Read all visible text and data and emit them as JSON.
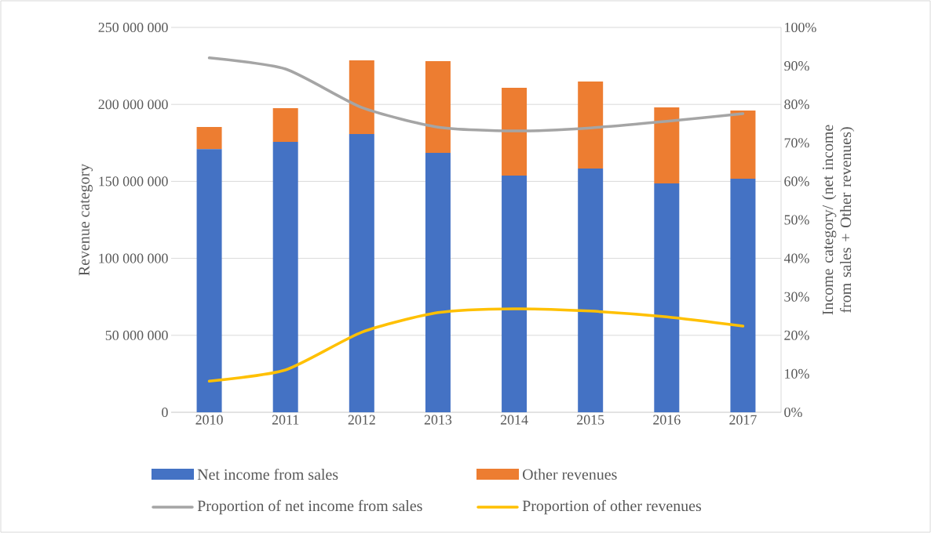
{
  "chart_data": {
    "type": "bar",
    "stacked": true,
    "grid": "y",
    "legend": "bottom",
    "categories": [
      "2010",
      "2011",
      "2012",
      "2013",
      "2014",
      "2015",
      "2016",
      "2017"
    ],
    "ylabel": "Revenue category",
    "y2label": "Income category/ (net income from sales + Other revenues)",
    "ylim": [
      0,
      250000000
    ],
    "yticks": [
      0,
      {
        "value": 50000000,
        "label": "50 000 000"
      },
      {
        "value": 100000000,
        "label": "100 000 000"
      },
      {
        "value": 150000000,
        "label": "150 000 000"
      },
      {
        "value": 200000000,
        "label": "200 000 000"
      },
      {
        "value": 250000000,
        "label": "250 000 000"
      }
    ],
    "y2lim": [
      0,
      100
    ],
    "y2ticks": [
      {
        "value": 0,
        "label": "0%"
      },
      {
        "value": 10,
        "label": "10%"
      },
      {
        "value": 20,
        "label": "20%"
      },
      {
        "value": 30,
        "label": "30%"
      },
      {
        "value": 40,
        "label": "40%"
      },
      {
        "value": 50,
        "label": "50%"
      },
      {
        "value": 60,
        "label": "60%"
      },
      {
        "value": 70,
        "label": "70%"
      },
      {
        "value": 80,
        "label": "80%"
      },
      {
        "value": 90,
        "label": "90%"
      },
      {
        "value": 100,
        "label": "100%"
      }
    ],
    "series": [
      {
        "name": "Net income from sales",
        "color": "#4472c4",
        "values": [
          171000000,
          175700000,
          180800000,
          168500000,
          153800000,
          158400000,
          148700000,
          151700000
        ]
      },
      {
        "name": "Other revenues",
        "color": "#ed7d31",
        "values": [
          14300000,
          21900000,
          47800000,
          59600000,
          57000000,
          56500000,
          49400000,
          44300000
        ]
      },
      {
        "name": "Proportion of net income from sales",
        "type": "line",
        "axis": "y2",
        "color": "#a5a5a5",
        "values": [
          92.1,
          89.2,
          79.2,
          74.1,
          73.1,
          73.9,
          75.6,
          77.6
        ]
      },
      {
        "name": "Proportion of other revenues",
        "type": "line",
        "axis": "y2",
        "color": "#ffc000",
        "values": [
          8.1,
          11.0,
          20.8,
          25.9,
          26.9,
          26.3,
          24.8,
          22.4
        ]
      }
    ]
  }
}
